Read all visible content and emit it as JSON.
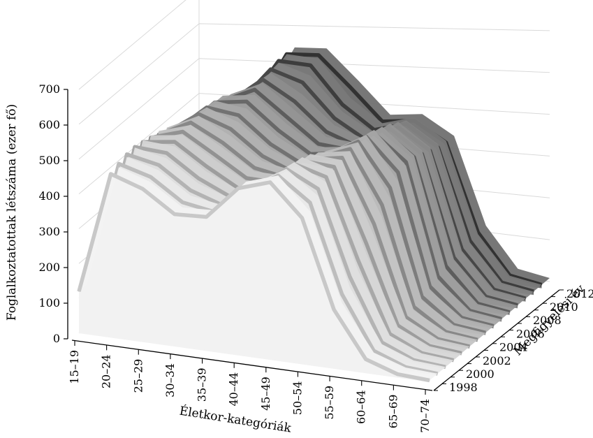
{
  "chart_data": {
    "type": "area",
    "view": "3d",
    "ylabel": "Foglalkoztatottak létszáma (ezer fő)",
    "xlabel": "Életkor-kategóriák",
    "zlabel": "Megfigyelési év",
    "ylim": [
      0,
      700
    ],
    "yticks": [
      0,
      100,
      200,
      300,
      400,
      500,
      600,
      700
    ],
    "categories": [
      "15–19",
      "20–24",
      "25–29",
      "30–34",
      "35–39",
      "40–44",
      "45–49",
      "50–54",
      "55–59",
      "60–64",
      "65–69",
      "70–74"
    ],
    "year_ticks": [
      "1998",
      "2000",
      "2002",
      "2004",
      "2006",
      "2008",
      "2010",
      "2012"
    ],
    "series": [
      {
        "year": 1998,
        "values": [
          120,
          470,
          440,
          380,
          385,
          480,
          510,
          420,
          170,
          40,
          10,
          5
        ]
      },
      {
        "year": 1999,
        "values": [
          110,
          480,
          455,
          395,
          380,
          455,
          510,
          445,
          195,
          45,
          11,
          5
        ]
      },
      {
        "year": 2000,
        "values": [
          100,
          488,
          470,
          410,
          380,
          440,
          510,
          465,
          225,
          50,
          12,
          5
        ]
      },
      {
        "year": 2001,
        "values": [
          90,
          490,
          485,
          425,
          385,
          425,
          505,
          480,
          255,
          55,
          13,
          5
        ]
      },
      {
        "year": 2002,
        "values": [
          80,
          485,
          498,
          440,
          390,
          410,
          495,
          490,
          285,
          60,
          14,
          6
        ]
      },
      {
        "year": 2003,
        "values": [
          70,
          478,
          508,
          455,
          400,
          400,
          480,
          497,
          320,
          65,
          15,
          6
        ]
      },
      {
        "year": 2004,
        "values": [
          60,
          468,
          515,
          470,
          410,
          395,
          465,
          503,
          355,
          75,
          16,
          6
        ]
      },
      {
        "year": 2005,
        "values": [
          55,
          455,
          520,
          490,
          425,
          390,
          450,
          505,
          385,
          85,
          17,
          7
        ]
      },
      {
        "year": 2006,
        "values": [
          50,
          440,
          520,
          510,
          440,
          395,
          435,
          500,
          410,
          95,
          18,
          7
        ]
      },
      {
        "year": 2007,
        "values": [
          45,
          425,
          515,
          530,
          460,
          405,
          420,
          490,
          420,
          105,
          19,
          8
        ]
      },
      {
        "year": 2008,
        "values": [
          40,
          410,
          500,
          545,
          480,
          415,
          410,
          480,
          415,
          115,
          20,
          8
        ]
      },
      {
        "year": 2009,
        "values": [
          35,
          390,
          480,
          555,
          505,
          430,
          400,
          465,
          405,
          120,
          21,
          9
        ]
      },
      {
        "year": 2010,
        "values": [
          30,
          370,
          455,
          565,
          540,
          450,
          400,
          450,
          395,
          125,
          22,
          9
        ]
      },
      {
        "year": 2011,
        "values": [
          28,
          345,
          430,
          570,
          570,
          470,
          410,
          440,
          385,
          130,
          23,
          10
        ]
      },
      {
        "year": 2012,
        "values": [
          25,
          320,
          400,
          570,
          580,
          500,
          415,
          430,
          380,
          135,
          24,
          10
        ]
      }
    ]
  }
}
